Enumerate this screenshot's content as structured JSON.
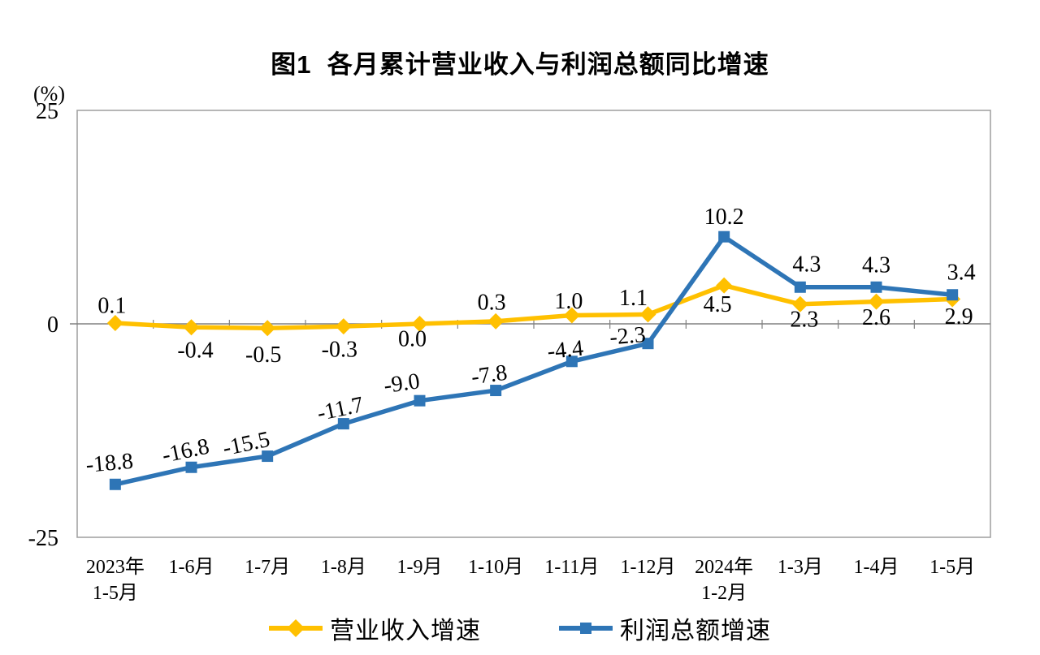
{
  "chart_data": {
    "type": "line",
    "title": "图1  各月累计营业收入与利润总额同比增速",
    "y_unit": "(%)",
    "ylim": [
      -25,
      25
    ],
    "y_ticks": [
      {
        "v": 25,
        "label": "25"
      },
      {
        "v": 0,
        "label": "0"
      },
      {
        "v": -25,
        "label": "-25"
      }
    ],
    "grid": "zero-line-only",
    "legend_position": "bottom-center",
    "categories": [
      [
        "2023年",
        "1-5月"
      ],
      [
        "1-6月"
      ],
      [
        "1-7月"
      ],
      [
        "1-8月"
      ],
      [
        "1-9月"
      ],
      [
        "1-10月"
      ],
      [
        "1-11月"
      ],
      [
        "1-12月"
      ],
      [
        "2024年",
        "1-2月"
      ],
      [
        "1-3月"
      ],
      [
        "1-4月"
      ],
      [
        "1-5月"
      ]
    ],
    "series": [
      {
        "name": "营业收入增速",
        "color": "#FFC000",
        "marker": "diamond",
        "values": [
          0.1,
          -0.4,
          -0.5,
          -0.3,
          0.0,
          0.3,
          1.0,
          1.1,
          4.5,
          2.3,
          2.6,
          2.9
        ],
        "labels": [
          "0.1",
          "-0.4",
          "-0.5",
          "-0.3",
          "0.0",
          "0.3",
          "1.0",
          "1.1",
          "4.5",
          "2.3",
          "2.6",
          "2.9"
        ],
        "label_offsets": [
          [
            -4,
            -21
          ],
          [
            5,
            29
          ],
          [
            -5,
            33
          ],
          [
            -5,
            29
          ],
          [
            -9,
            19
          ],
          [
            -5,
            -23
          ],
          [
            -4,
            -17
          ],
          [
            -18,
            -20
          ],
          [
            -8,
            24
          ],
          [
            5,
            19
          ],
          [
            0,
            20
          ],
          [
            8,
            22
          ]
        ],
        "label_rotations": [
          0,
          0,
          0,
          0,
          0,
          0,
          0,
          0,
          0,
          0,
          0,
          0
        ]
      },
      {
        "name": "利润总额增速",
        "color": "#2E75B6",
        "marker": "square",
        "values": [
          -18.8,
          -16.8,
          -15.5,
          -11.7,
          -9.0,
          -7.8,
          -4.4,
          -2.3,
          10.2,
          4.3,
          4.3,
          3.4
        ],
        "labels": [
          "-18.8",
          "-16.8",
          "-15.5",
          "-11.7",
          "-9.0",
          "-7.8",
          "-4.4",
          "-2.3",
          "10.2",
          "4.3",
          "4.3",
          "3.4"
        ],
        "label_offsets": [
          [
            -7,
            -26
          ],
          [
            -7,
            -20
          ],
          [
            -26,
            -15
          ],
          [
            -4,
            -18
          ],
          [
            -22,
            -21
          ],
          [
            -8,
            -19
          ],
          [
            -8,
            -14
          ],
          [
            -25,
            -9
          ],
          [
            0,
            -24
          ],
          [
            8,
            -28
          ],
          [
            0,
            -27
          ],
          [
            11,
            -27
          ]
        ],
        "label_rotations": [
          -5,
          -12,
          -12,
          -12,
          -8,
          -8,
          -6,
          -5,
          0,
          0,
          0,
          0
        ]
      }
    ]
  }
}
